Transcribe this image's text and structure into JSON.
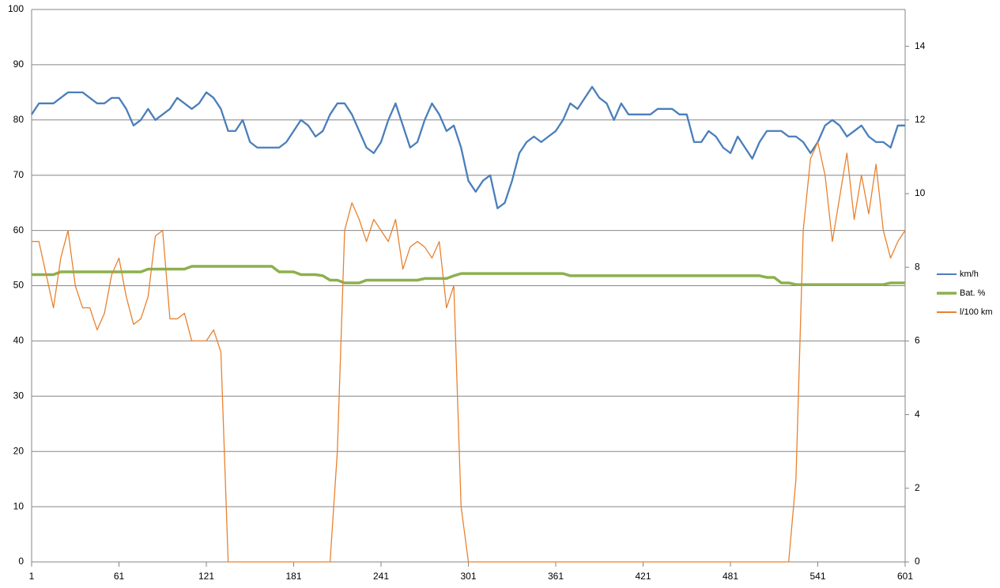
{
  "chart_data": {
    "type": "line",
    "x": [
      1,
      6,
      11,
      16,
      21,
      26,
      31,
      36,
      41,
      46,
      51,
      56,
      61,
      66,
      71,
      76,
      81,
      86,
      91,
      96,
      101,
      106,
      111,
      116,
      121,
      126,
      131,
      136,
      141,
      146,
      151,
      156,
      161,
      166,
      171,
      176,
      181,
      186,
      191,
      196,
      201,
      206,
      211,
      216,
      221,
      226,
      231,
      236,
      241,
      246,
      251,
      256,
      261,
      266,
      271,
      276,
      281,
      286,
      291,
      296,
      301,
      306,
      311,
      316,
      321,
      326,
      331,
      336,
      341,
      346,
      351,
      356,
      361,
      366,
      371,
      376,
      381,
      386,
      391,
      396,
      401,
      406,
      411,
      416,
      421,
      426,
      431,
      436,
      441,
      446,
      451,
      456,
      461,
      466,
      471,
      476,
      481,
      486,
      491,
      496,
      501,
      506,
      511,
      516,
      521,
      526,
      531,
      536,
      541,
      546,
      551,
      556,
      561,
      566,
      571,
      576,
      581,
      586,
      591,
      596,
      601
    ],
    "xlim": [
      1,
      601
    ],
    "xticks": [
      1,
      61,
      121,
      181,
      241,
      301,
      361,
      421,
      481,
      541,
      601
    ],
    "ylim": [
      0,
      100
    ],
    "yticks": [
      0,
      10,
      20,
      30,
      40,
      50,
      60,
      70,
      80,
      90,
      100
    ],
    "y2lim": [
      0,
      15
    ],
    "y2ticks": [
      0,
      2,
      4,
      6,
      8,
      10,
      12,
      14
    ],
    "grid": true,
    "legend": "right",
    "series": [
      {
        "name": "km/h",
        "color": "#4a7ebb",
        "values": [
          81,
          83,
          83,
          83,
          84,
          85,
          85,
          85,
          84,
          83,
          83,
          84,
          84,
          82,
          79,
          80,
          82,
          80,
          81,
          82,
          84,
          83,
          82,
          83,
          85,
          84,
          82,
          78,
          78,
          80,
          76,
          75,
          75,
          75,
          75,
          76,
          78,
          80,
          79,
          77,
          78,
          81,
          83,
          83,
          81,
          78,
          75,
          74,
          76,
          80,
          83,
          79,
          75,
          76,
          80,
          83,
          81,
          78,
          79,
          75,
          69,
          67,
          69,
          70,
          64,
          65,
          69,
          74,
          76,
          77,
          76,
          77,
          78,
          80,
          83,
          82,
          84,
          86,
          84,
          83,
          80,
          83,
          81,
          81,
          81,
          81,
          82,
          82,
          82,
          81,
          81,
          76,
          76,
          78,
          77,
          75,
          74,
          77,
          75,
          73,
          76,
          78,
          78,
          78,
          77,
          77,
          76,
          74,
          76,
          79,
          80,
          79,
          77,
          78,
          79,
          77,
          76,
          76,
          75,
          79,
          79
        ]
      },
      {
        "name": "Bat. %",
        "color": "#8cb04e",
        "values": [
          52,
          52,
          52,
          52,
          52.5,
          52.5,
          52.5,
          52.5,
          52.5,
          52.5,
          52.5,
          52.5,
          52.5,
          52.5,
          52.5,
          52.5,
          53,
          53,
          53,
          53,
          53,
          53,
          53.5,
          53.5,
          53.5,
          53.5,
          53.5,
          53.5,
          53.5,
          53.5,
          53.5,
          53.5,
          53.5,
          53.5,
          52.5,
          52.5,
          52.5,
          52,
          52,
          52,
          51.8,
          51,
          51,
          50.5,
          50.5,
          50.5,
          51,
          51,
          51,
          51,
          51,
          51,
          51,
          51,
          51.3,
          51.3,
          51.3,
          51.3,
          51.8,
          52.2,
          52.2,
          52.2,
          52.2,
          52.2,
          52.2,
          52.2,
          52.2,
          52.2,
          52.2,
          52.2,
          52.2,
          52.2,
          52.2,
          52.2,
          51.8,
          51.8,
          51.8,
          51.8,
          51.8,
          51.8,
          51.8,
          51.8,
          51.8,
          51.8,
          51.8,
          51.8,
          51.8,
          51.8,
          51.8,
          51.8,
          51.8,
          51.8,
          51.8,
          51.8,
          51.8,
          51.8,
          51.8,
          51.8,
          51.8,
          51.8,
          51.8,
          51.5,
          51.5,
          50.5,
          50.5,
          50.2,
          50.2,
          50.2,
          50.2,
          50.2,
          50.2,
          50.2,
          50.2,
          50.2,
          50.2,
          50.2,
          50.2,
          50.2,
          50.5,
          50.5,
          50.5
        ]
      },
      {
        "name": "l/100 km",
        "color": "#e8822f",
        "axis": "y2",
        "values": [
          8.7,
          8.7,
          7.8,
          6.9,
          8.25,
          9,
          7.5,
          6.9,
          6.9,
          6.3,
          6.75,
          7.8,
          8.25,
          7.2,
          6.45,
          6.6,
          7.2,
          8.85,
          9,
          6.6,
          6.6,
          6.75,
          6,
          6,
          6,
          6.3,
          5.7,
          0,
          0,
          0,
          0,
          0,
          0,
          0,
          0,
          0,
          0,
          0,
          0,
          0,
          0,
          0,
          3,
          9,
          9.75,
          9.3,
          8.7,
          9.3,
          9,
          8.7,
          9.3,
          7.95,
          8.55,
          8.7,
          8.55,
          8.25,
          8.7,
          6.9,
          7.5,
          1.5,
          0,
          0,
          0,
          0,
          0,
          0,
          0,
          0,
          0,
          0,
          0,
          0,
          0,
          0,
          0,
          0,
          0,
          0,
          0,
          0,
          0,
          0,
          0,
          0,
          0,
          0,
          0,
          0,
          0,
          0,
          0,
          0,
          0,
          0,
          0,
          0,
          0,
          0,
          0,
          0,
          0,
          0,
          0,
          0,
          0,
          2.25,
          9,
          10.95,
          11.4,
          10.5,
          8.7,
          9.9,
          11.1,
          9.3,
          10.5,
          9.45,
          10.8,
          9,
          8.25,
          8.7,
          9
        ]
      }
    ]
  }
}
